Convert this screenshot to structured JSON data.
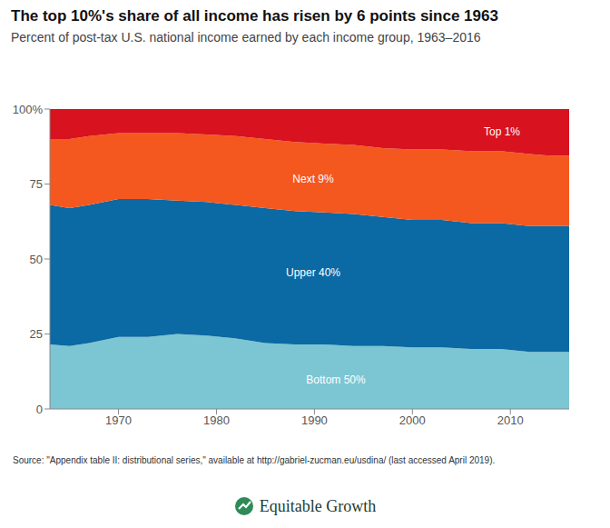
{
  "chart_data": {
    "type": "area",
    "title": "The top 10%'s share of all income has risen by 6 points since 1963",
    "subtitle": "Percent of post-tax U.S. national income earned by each income group, 1963–2016",
    "source": "Source: \"Appendix table II: distributional series,\" available at http://gabriel-zucman.eu/usdina/ (last accessed April 2019).",
    "logo": "Equitable Growth",
    "stacked": true,
    "grid": false,
    "x": [
      1963,
      1965,
      1967,
      1970,
      1973,
      1976,
      1979,
      1982,
      1985,
      1988,
      1991,
      1994,
      1997,
      2000,
      2003,
      2006,
      2009,
      2012,
      2014,
      2016
    ],
    "xlim": [
      1963,
      2016
    ],
    "xticks": [
      1970,
      1980,
      1990,
      2000,
      2010
    ],
    "ylim": [
      0,
      100
    ],
    "yticks": [
      0,
      25,
      50,
      75,
      {
        "value": 100,
        "label": "100%"
      }
    ],
    "series": [
      {
        "name": "Bottom 50%",
        "color": "#7cc6d3",
        "values": [
          21.5,
          21,
          22,
          24,
          24,
          25,
          24.5,
          23.5,
          22,
          21.5,
          21.5,
          21,
          21,
          20.5,
          20.5,
          20,
          20,
          19,
          19,
          19
        ]
      },
      {
        "name": "Upper 40%",
        "color": "#0b69a3",
        "values": [
          46.5,
          46,
          46,
          46,
          46,
          44.5,
          44.5,
          44.5,
          45,
          44.5,
          44,
          44,
          43,
          42.5,
          42.5,
          42,
          42,
          42,
          42,
          42
        ]
      },
      {
        "name": "Next 9%",
        "color": "#f4581e",
        "values": [
          22,
          23,
          23,
          22,
          22,
          22.5,
          22.5,
          23,
          23,
          23,
          23,
          23,
          23,
          23.5,
          23.5,
          24,
          24,
          24,
          23.5,
          23.5
        ]
      },
      {
        "name": "Top 1%",
        "color": "#d8121f",
        "values": [
          10,
          10,
          9,
          8,
          8,
          8,
          8.5,
          9,
          10,
          11,
          11.5,
          12,
          13,
          13.5,
          13.5,
          14,
          14,
          15,
          15.5,
          15.5
        ]
      }
    ]
  }
}
